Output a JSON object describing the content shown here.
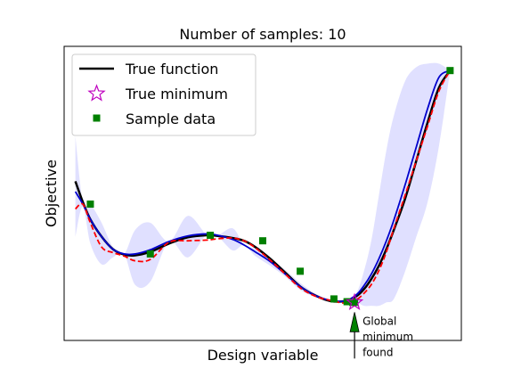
{
  "chart_data": {
    "type": "line",
    "title": "Number of samples: 10",
    "xlabel": "Design variable",
    "ylabel": "Objective",
    "xlim": [
      0,
      1
    ],
    "ylim": [
      -1.8,
      2.45
    ],
    "grid": false,
    "ticks_visible": false,
    "legend": {
      "placement": "top-left",
      "entries": [
        {
          "label": "True function",
          "marker": "line",
          "color": "#000000"
        },
        {
          "label": "True minimum",
          "marker": "star",
          "color": "#bf00bf"
        },
        {
          "label": "Sample data",
          "marker": "square",
          "color": "#008000"
        }
      ]
    },
    "series": [
      {
        "name": "True function",
        "style": "solid",
        "color": "#000000",
        "x": [
          0.0,
          0.02,
          0.04,
          0.07,
          0.1,
          0.13,
          0.16,
          0.2,
          0.25,
          0.3,
          0.35,
          0.38,
          0.42,
          0.45,
          0.48,
          0.52,
          0.56,
          0.6,
          0.64,
          0.68,
          0.72,
          0.75,
          0.77,
          0.79,
          0.81,
          0.83,
          0.85,
          0.88,
          0.91,
          0.94,
          0.97,
          1.0
        ],
        "y": [
          0.5,
          0.2,
          -0.05,
          -0.3,
          -0.48,
          -0.56,
          -0.57,
          -0.52,
          -0.4,
          -0.31,
          -0.28,
          -0.29,
          -0.32,
          -0.36,
          -0.45,
          -0.62,
          -0.82,
          -1.02,
          -1.15,
          -1.23,
          -1.23,
          -1.16,
          -1.06,
          -0.91,
          -0.72,
          -0.48,
          -0.2,
          0.25,
          0.8,
          1.35,
          1.85,
          2.1
        ]
      },
      {
        "name": "",
        "style": "solid",
        "color": "#0000cc",
        "x": [
          0.0,
          0.02,
          0.04,
          0.07,
          0.1,
          0.13,
          0.16,
          0.2,
          0.25,
          0.3,
          0.35,
          0.38,
          0.42,
          0.45,
          0.48,
          0.52,
          0.56,
          0.6,
          0.64,
          0.68,
          0.72,
          0.75,
          0.77,
          0.79,
          0.81,
          0.83,
          0.85,
          0.88,
          0.91,
          0.94,
          0.97,
          1.0
        ],
        "y": [
          0.35,
          0.17,
          -0.05,
          -0.3,
          -0.48,
          -0.55,
          -0.55,
          -0.49,
          -0.37,
          -0.29,
          -0.26,
          -0.28,
          -0.34,
          -0.42,
          -0.52,
          -0.66,
          -0.84,
          -1.02,
          -1.15,
          -1.22,
          -1.23,
          -1.14,
          -1.01,
          -0.84,
          -0.62,
          -0.36,
          -0.06,
          0.45,
          1.0,
          1.55,
          2.0,
          2.1
        ]
      },
      {
        "name": "",
        "style": "dashed",
        "color": "#ff0000",
        "x": [
          0.0,
          0.02,
          0.04,
          0.07,
          0.1,
          0.13,
          0.16,
          0.2,
          0.25,
          0.3,
          0.35,
          0.38,
          0.42,
          0.45,
          0.48,
          0.52,
          0.56,
          0.6,
          0.64,
          0.68,
          0.72,
          0.75,
          0.77,
          0.79,
          0.81,
          0.83,
          0.85,
          0.88,
          0.91,
          0.94,
          0.97,
          1.0
        ],
        "y": [
          0.1,
          0.17,
          -0.1,
          -0.45,
          -0.53,
          -0.58,
          -0.65,
          -0.63,
          -0.38,
          -0.36,
          -0.35,
          -0.33,
          -0.32,
          -0.36,
          -0.46,
          -0.64,
          -0.84,
          -1.04,
          -1.16,
          -1.22,
          -1.26,
          -1.21,
          -1.12,
          -0.99,
          -0.79,
          -0.52,
          -0.18,
          0.3,
          0.8,
          1.3,
          1.8,
          2.1
        ]
      }
    ],
    "confidence_band": {
      "color": "#0000ff",
      "opacity": 0.12,
      "x": [
        0.0,
        0.02,
        0.04,
        0.07,
        0.1,
        0.13,
        0.16,
        0.2,
        0.25,
        0.3,
        0.35,
        0.38,
        0.42,
        0.45,
        0.48,
        0.52,
        0.56,
        0.6,
        0.64,
        0.68,
        0.72,
        0.75,
        0.77,
        0.79,
        0.81,
        0.83,
        0.85,
        0.88,
        0.91,
        0.94,
        0.97,
        1.0
      ],
      "upper": [
        1.15,
        0.2,
        0.17,
        -0.1,
        -0.45,
        -0.55,
        -0.2,
        -0.1,
        -0.37,
        0.0,
        -0.27,
        -0.28,
        -0.18,
        -0.42,
        -0.48,
        -0.62,
        -0.78,
        -0.97,
        -1.12,
        -1.22,
        -1.23,
        -1.11,
        -0.8,
        -0.35,
        0.3,
        0.95,
        1.45,
        1.95,
        2.15,
        2.2,
        2.2,
        2.1
      ],
      "lower": [
        -0.3,
        0.14,
        -0.4,
        -0.7,
        -0.6,
        -0.55,
        -1.0,
        -0.95,
        -0.37,
        -0.6,
        -0.27,
        -0.3,
        -0.5,
        -0.42,
        -0.58,
        -0.72,
        -0.88,
        -1.07,
        -1.17,
        -1.23,
        -1.23,
        -1.25,
        -1.3,
        -1.3,
        -1.3,
        -1.25,
        -1.2,
        -0.8,
        -0.3,
        0.2,
        1.0,
        2.1
      ]
    },
    "samples": {
      "x": [
        0.04,
        0.2,
        0.36,
        0.5,
        0.6,
        0.69,
        0.725,
        0.74,
        0.745,
        1.0
      ],
      "y": [
        0.17,
        -0.55,
        -0.28,
        -0.36,
        -0.8,
        -1.2,
        -1.24,
        -1.25,
        -1.25,
        2.1
      ],
      "color": "#008000"
    },
    "true_minimum": {
      "x": 0.745,
      "y": -1.25,
      "color": "#bf00bf"
    },
    "annotation": {
      "text_lines": [
        "Global",
        "minimum",
        "found"
      ],
      "points_to": {
        "x": 0.745,
        "y": -1.25
      },
      "arrow_color": "#008000"
    }
  }
}
